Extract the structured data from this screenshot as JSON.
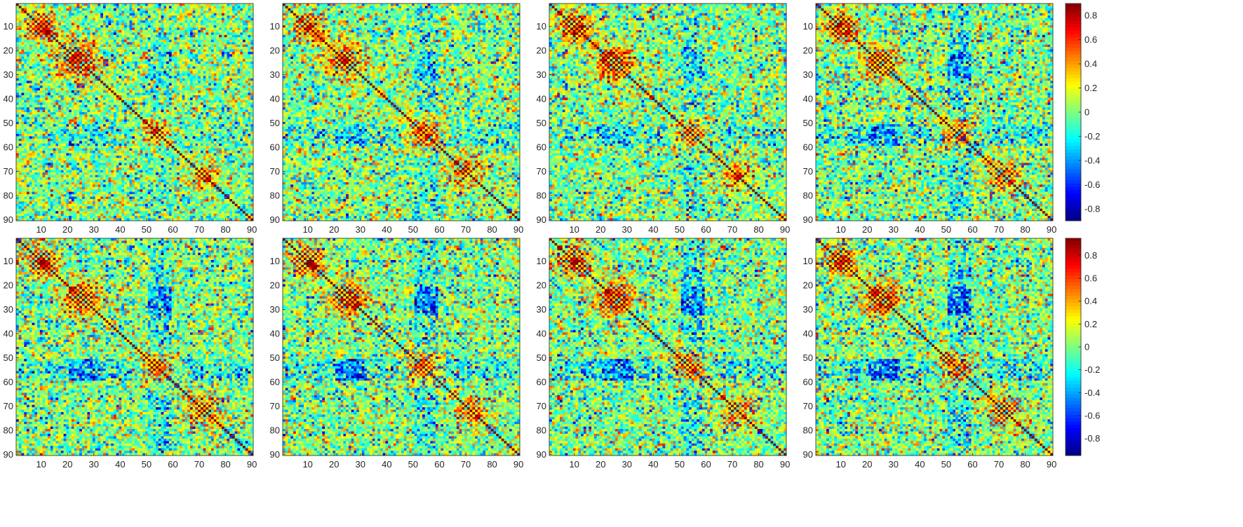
{
  "chart_data": {
    "type": "heatmap",
    "description_of_layout": "grid",
    "rows": 2,
    "cols": 4,
    "matrix_size": 90,
    "colormap": "jet",
    "x_ticks": [
      "10",
      "20",
      "30",
      "40",
      "50",
      "60",
      "70",
      "80",
      "90"
    ],
    "y_ticks": [
      "10",
      "20",
      "30",
      "40",
      "50",
      "60",
      "70",
      "80",
      "90"
    ],
    "colorbars": [
      {
        "row": 1,
        "range": [
          -0.9,
          0.9
        ],
        "ticks": [
          "0.8",
          "0.6",
          "0.4",
          "0.2",
          "0",
          "-0.2",
          "-0.4",
          "-0.6",
          "-0.8"
        ],
        "tick_values": [
          0.8,
          0.6,
          0.4,
          0.2,
          0,
          -0.2,
          -0.4,
          -0.6,
          -0.8
        ]
      },
      {
        "row": 2,
        "range": [
          -0.95,
          0.95
        ],
        "ticks": [
          "0.8",
          "0.6",
          "0.4",
          "0.2",
          "0",
          "-0.2",
          "-0.4",
          "-0.6",
          "-0.8"
        ],
        "tick_values": [
          0.8,
          0.6,
          0.4,
          0.2,
          0,
          -0.2,
          -0.4,
          -0.6,
          -0.8
        ]
      }
    ],
    "panels": [
      {
        "row": 1,
        "col": 1,
        "structure": 0.35,
        "blocks": [
          [
            10,
            0.8
          ],
          [
            24,
            0.9
          ],
          [
            54,
            0.7
          ],
          [
            72,
            0.55
          ]
        ]
      },
      {
        "row": 1,
        "col": 2,
        "structure": 0.45,
        "blocks": [
          [
            10,
            0.8
          ],
          [
            24,
            0.9
          ],
          [
            54,
            0.75
          ],
          [
            70,
            0.6
          ]
        ]
      },
      {
        "row": 1,
        "col": 3,
        "structure": 0.5,
        "blocks": [
          [
            10,
            0.85
          ],
          [
            25,
            0.9
          ],
          [
            54,
            0.7
          ],
          [
            72,
            0.6
          ]
        ]
      },
      {
        "row": 1,
        "col": 4,
        "structure": 0.65,
        "blocks": [
          [
            10,
            0.85
          ],
          [
            25,
            0.95
          ],
          [
            54,
            0.8
          ],
          [
            72,
            0.6
          ]
        ]
      },
      {
        "row": 2,
        "col": 1,
        "structure": 0.7,
        "blocks": [
          [
            10,
            0.85
          ],
          [
            25,
            0.95
          ],
          [
            54,
            0.85
          ],
          [
            72,
            0.65
          ]
        ]
      },
      {
        "row": 2,
        "col": 2,
        "structure": 0.72,
        "blocks": [
          [
            10,
            0.85
          ],
          [
            25,
            0.95
          ],
          [
            54,
            0.85
          ],
          [
            72,
            0.65
          ]
        ]
      },
      {
        "row": 2,
        "col": 3,
        "structure": 0.74,
        "blocks": [
          [
            10,
            0.85
          ],
          [
            25,
            0.95
          ],
          [
            54,
            0.85
          ],
          [
            72,
            0.65
          ]
        ]
      },
      {
        "row": 2,
        "col": 4,
        "structure": 0.75,
        "blocks": [
          [
            10,
            0.85
          ],
          [
            25,
            0.95
          ],
          [
            54,
            0.85
          ],
          [
            72,
            0.7
          ]
        ]
      }
    ]
  }
}
